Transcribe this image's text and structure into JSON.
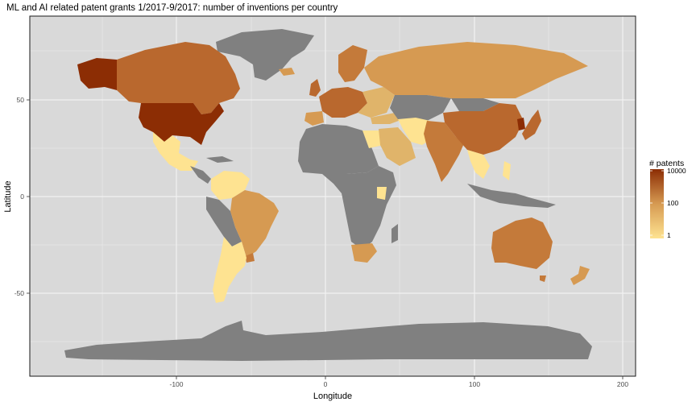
{
  "title": "ML and AI related patent grants 1/2017-9/2017: number of inventions per country",
  "chart_data": {
    "type": "choropleth",
    "xlabel": "Longitude",
    "ylabel": "Latitude",
    "xlim": [
      -197,
      210
    ],
    "ylim": [
      -92,
      94
    ],
    "x_ticks": [
      -100,
      0,
      100,
      200
    ],
    "y_ticks": [
      50,
      0,
      -50
    ],
    "background_color": "#d9d9d9",
    "no_data_color": "#808080",
    "legend": {
      "title": "# patents",
      "scale": "log",
      "breaks": [
        10000,
        100,
        1
      ],
      "low_color": "#fee391",
      "mid_color": "#d69a52",
      "high_color": "#8c2d04"
    },
    "countries": [
      {
        "name": "United States",
        "patents": 10000
      },
      {
        "name": "Canada",
        "patents": 200
      },
      {
        "name": "Mexico",
        "patents": 5
      },
      {
        "name": "Brazil",
        "patents": 60
      },
      {
        "name": "Colombia",
        "patents": 1
      },
      {
        "name": "Venezuela",
        "patents": 1
      },
      {
        "name": "Argentina",
        "patents": 3
      },
      {
        "name": "Chile",
        "patents": 1
      },
      {
        "name": "Uruguay",
        "patents": 30
      },
      {
        "name": "Russia",
        "patents": 40
      },
      {
        "name": "Scandinavia",
        "patents": 100
      },
      {
        "name": "United Kingdom",
        "patents": 600
      },
      {
        "name": "Europe",
        "patents": 300
      },
      {
        "name": "China",
        "patents": 800
      },
      {
        "name": "Japan",
        "patents": 1500
      },
      {
        "name": "South Korea",
        "patents": 3000
      },
      {
        "name": "India",
        "patents": 400
      },
      {
        "name": "Iran",
        "patents": 5
      },
      {
        "name": "Saudi Arabia",
        "patents": 30
      },
      {
        "name": "Egypt",
        "patents": 1
      },
      {
        "name": "Kenya",
        "patents": 1
      },
      {
        "name": "South Africa",
        "patents": 40
      },
      {
        "name": "Australia",
        "patents": 300
      },
      {
        "name": "New Zealand",
        "patents": 40
      },
      {
        "name": "Southeast Asia",
        "patents": 2
      }
    ]
  }
}
